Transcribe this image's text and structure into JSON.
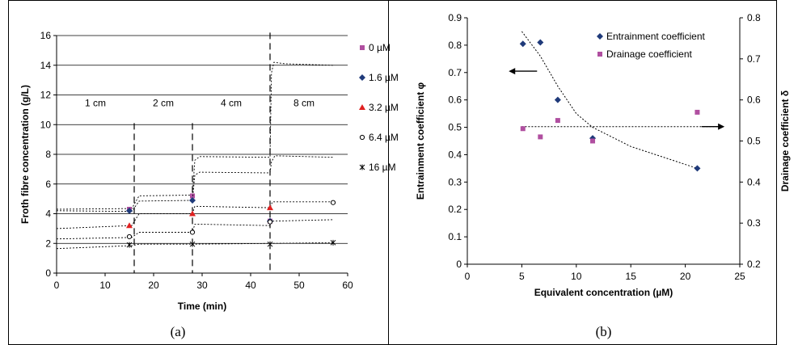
{
  "chart_data": [
    {
      "type": "line",
      "caption": "(a)",
      "xlabel": "Time (min)",
      "ylabel": "Froth fibre concentration (g/L)",
      "xlim": [
        0,
        60
      ],
      "ylim": [
        0,
        16
      ],
      "x_ticks": [
        0,
        10,
        20,
        30,
        40,
        50,
        60
      ],
      "y_ticks": [
        0,
        2,
        4,
        6,
        8,
        10,
        12,
        14,
        16
      ],
      "grid": "horizontal",
      "legend_position": "right",
      "legend": [
        "0 µM",
        "1.6 µM",
        "3.2 µM",
        "6.4 µM",
        "16 µM"
      ],
      "phase_boundaries": [
        16,
        28,
        44
      ],
      "phase_labels": [
        {
          "text": "1 cm",
          "x": 8
        },
        {
          "text": "2 cm",
          "x": 22
        },
        {
          "text": "4 cm",
          "x": 36
        },
        {
          "text": "8 cm",
          "x": 51
        }
      ],
      "series": [
        {
          "name": "0 µM",
          "marker": "square",
          "color": "#b04fa0",
          "points": [
            [
              15,
              4.3
            ],
            [
              28,
              5.2
            ],
            [
              44,
              3.5
            ]
          ],
          "line": [
            [
              0,
              4.3
            ],
            [
              15.5,
              4.35
            ],
            [
              17,
              5.2
            ],
            [
              28,
              5.25
            ],
            [
              28.5,
              7.6
            ],
            [
              29.5,
              7.85
            ],
            [
              44,
              7.8
            ],
            [
              44.3,
              13.5
            ],
            [
              44.8,
              14.2
            ],
            [
              47,
              14.1
            ],
            [
              57,
              14.0
            ]
          ]
        },
        {
          "name": "1.6 µM",
          "marker": "diamond",
          "color": "#1f3a7a",
          "points": [
            [
              15,
              4.2
            ],
            [
              28,
              4.9
            ],
            [
              44,
              3.5
            ]
          ],
          "line": [
            [
              0,
              4.2
            ],
            [
              15.5,
              4.15
            ],
            [
              17,
              4.85
            ],
            [
              28,
              4.9
            ],
            [
              28.5,
              6.6
            ],
            [
              29.5,
              6.8
            ],
            [
              44,
              6.75
            ],
            [
              44.3,
              7.5
            ],
            [
              45,
              7.9
            ],
            [
              57,
              7.8
            ]
          ]
        },
        {
          "name": "3.2 µM",
          "marker": "triangle",
          "color": "#e02020",
          "points": [
            [
              15,
              3.2
            ],
            [
              28,
              4.0
            ],
            [
              44,
              4.4
            ]
          ],
          "line": [
            [
              0,
              3.0
            ],
            [
              15.5,
              3.2
            ],
            [
              17,
              4.0
            ],
            [
              28,
              4.0
            ],
            [
              28.5,
              4.5
            ],
            [
              44,
              4.4
            ],
            [
              44.5,
              4.8
            ],
            [
              57,
              4.8
            ]
          ]
        },
        {
          "name": "6.4 µM",
          "marker": "circle",
          "color": "#000000",
          "points": [
            [
              15,
              2.45
            ],
            [
              28,
              2.75
            ],
            [
              44,
              3.45
            ],
            [
              57,
              4.75
            ]
          ],
          "line": [
            [
              0,
              2.3
            ],
            [
              15.5,
              2.4
            ],
            [
              17,
              2.75
            ],
            [
              28,
              2.75
            ],
            [
              28.5,
              3.3
            ],
            [
              44,
              3.2
            ],
            [
              44.5,
              3.5
            ],
            [
              57,
              3.6
            ]
          ]
        },
        {
          "name": "16 µM",
          "marker": "star",
          "color": "#000000",
          "points": [
            [
              15,
              1.9
            ],
            [
              28,
              1.95
            ],
            [
              44,
              1.95
            ],
            [
              57,
              2.05
            ]
          ],
          "line": [
            [
              0,
              1.65
            ],
            [
              15.5,
              1.85
            ],
            [
              17,
              1.95
            ],
            [
              28,
              1.95
            ],
            [
              44,
              2.0
            ],
            [
              57,
              2.05
            ]
          ]
        }
      ]
    },
    {
      "type": "scatter",
      "caption": "(b)",
      "xlabel": "Equivalent concentration (µM)",
      "ylabel": "Entrainment coefficient  φ",
      "ylabel_right": "Drainage coefficient  δ",
      "xlim": [
        0,
        25
      ],
      "ylim": [
        0,
        0.9
      ],
      "ylim_right": [
        0.2,
        0.8
      ],
      "x_ticks": [
        0,
        5,
        10,
        15,
        20,
        25
      ],
      "y_ticks": [
        "0",
        "0.1",
        "0.2",
        "0.3",
        "0.4",
        "0.5",
        "0.6",
        "0.7",
        "0.8",
        "0.9"
      ],
      "y_ticks_right": [
        "0.2",
        "0.3",
        "0.4",
        "0.5",
        "0.6",
        "0.7",
        "0.8"
      ],
      "grid": "none",
      "legend_position": "top-right",
      "series": [
        {
          "name": "Entrainment coefficient",
          "axis": "left",
          "marker": "diamond",
          "color": "#1f3a7a",
          "x": [
            5.1,
            6.7,
            8.3,
            11.5,
            21.1
          ],
          "y": [
            0.805,
            0.81,
            0.6,
            0.46,
            0.35
          ]
        },
        {
          "name": "Drainage coefficient",
          "axis": "right",
          "marker": "square",
          "color": "#b04fa0",
          "x": [
            5.1,
            6.7,
            8.3,
            11.5,
            21.1
          ],
          "y": [
            0.53,
            0.51,
            0.55,
            0.5,
            0.57
          ]
        }
      ],
      "trend_lines": [
        {
          "axis": "left",
          "points": [
            [
              5.0,
              0.85
            ],
            [
              6.7,
              0.76
            ],
            [
              8.3,
              0.65
            ],
            [
              10,
              0.55
            ],
            [
              11.5,
              0.5
            ],
            [
              15,
              0.43
            ],
            [
              21.1,
              0.35
            ]
          ]
        },
        {
          "axis": "right",
          "points": [
            [
              5.0,
              0.535
            ],
            [
              23.4,
              0.535
            ]
          ]
        }
      ],
      "arrows": [
        {
          "direction": "left",
          "axis": "left",
          "from_x": 6.4,
          "to_x": 3.8,
          "y": 0.705
        },
        {
          "direction": "right",
          "axis": "right",
          "from_x": 21.5,
          "to_x": 23.6,
          "y": 0.535
        }
      ]
    }
  ]
}
